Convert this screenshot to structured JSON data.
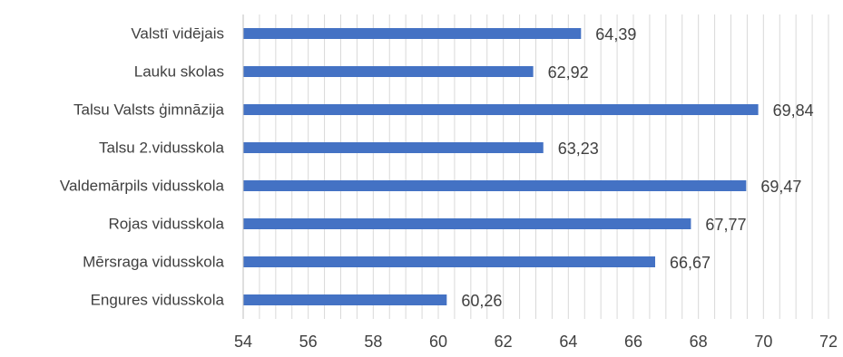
{
  "chart_data": {
    "type": "bar",
    "orientation": "horizontal",
    "categories": [
      "Valstī vidējais",
      "Lauku skolas",
      "Talsu Valsts ģimnāzija",
      "Talsu 2.vidusskola",
      "Valdemārpils vidusskola",
      "Rojas vidusskola",
      "Mērsraga vidusskola",
      "Engures vidusskola"
    ],
    "values": [
      64.39,
      62.92,
      69.84,
      63.23,
      69.47,
      67.77,
      66.67,
      60.26
    ],
    "value_labels": [
      "64,39",
      "62,92",
      "69,84",
      "63,23",
      "69,47",
      "67,77",
      "66,67",
      "60,26"
    ],
    "xlim": [
      54,
      72
    ],
    "x_ticks": [
      54,
      56,
      58,
      60,
      62,
      64,
      66,
      68,
      70,
      72
    ],
    "minor_grid_step": 0.5,
    "grid": true,
    "bar_color": "#4472c4",
    "title": "",
    "xlabel": "",
    "ylabel": ""
  }
}
